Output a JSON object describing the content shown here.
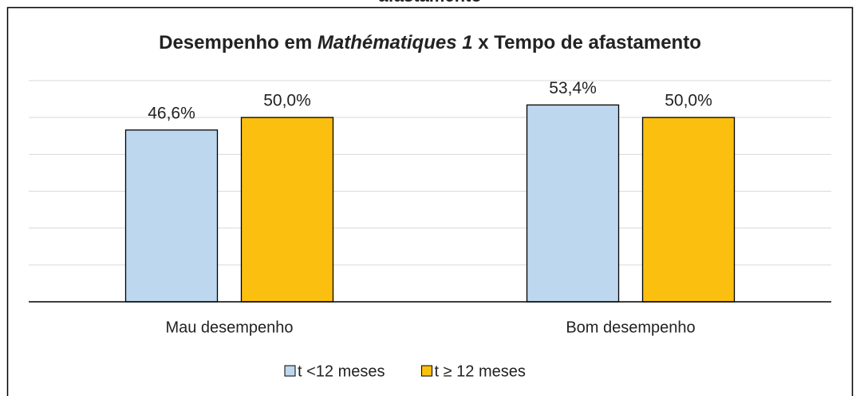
{
  "header_fragment": "afastamento",
  "chart_data": {
    "type": "bar",
    "title_parts": [
      "Desempenho em ",
      "Mathématiques 1",
      " x Tempo de afastamento"
    ],
    "categories": [
      "Mau desempenho",
      "Bom desempenho"
    ],
    "series": [
      {
        "name": "t <12 meses",
        "color": "#bdd7ee",
        "values": [
          46.6,
          53.4
        ],
        "value_labels": [
          "46,6%",
          "53,4%"
        ]
      },
      {
        "name": "t ≥ 12 meses",
        "color": "#fbbf0f",
        "values": [
          50.0,
          50.0
        ],
        "value_labels": [
          "50,0%",
          "50,0%"
        ]
      }
    ],
    "ylim": [
      0,
      60
    ],
    "yticks": [
      0,
      10,
      20,
      30,
      40,
      50,
      60
    ],
    "show_tick_labels": false,
    "grid": true,
    "legend": "bottom"
  }
}
